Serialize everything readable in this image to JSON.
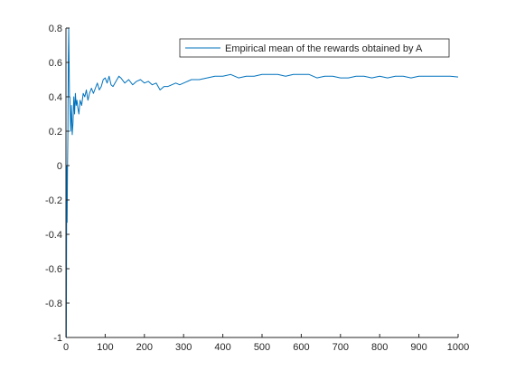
{
  "chart_data": {
    "type": "line",
    "title": "",
    "xlabel": "",
    "ylabel": "",
    "xlim": [
      0,
      1000
    ],
    "ylim": [
      -1,
      0.8
    ],
    "grid": false,
    "legend_position": "top-right",
    "x_ticks": [
      "0",
      "100",
      "200",
      "300",
      "400",
      "500",
      "600",
      "700",
      "800",
      "900",
      "1000"
    ],
    "y_ticks": [
      "-1",
      "-0.8",
      "-0.6",
      "-0.4",
      "-0.2",
      "0",
      "0.2",
      "0.4",
      "0.6",
      "0.8"
    ],
    "x_tick_values": [
      0,
      100,
      200,
      300,
      400,
      500,
      600,
      700,
      800,
      900,
      1000
    ],
    "y_tick_values": [
      -1,
      -0.8,
      -0.6,
      -0.4,
      -0.2,
      0,
      0.2,
      0.4,
      0.6,
      0.8
    ],
    "series": [
      {
        "name": "Empirical mean of the rewards obtained by A",
        "color": "#0072bd",
        "x": [
          1,
          2,
          3,
          4,
          5,
          6,
          7,
          8,
          9,
          10,
          12,
          14,
          16,
          18,
          20,
          22,
          24,
          26,
          28,
          30,
          33,
          36,
          40,
          44,
          48,
          52,
          56,
          60,
          65,
          70,
          75,
          80,
          85,
          90,
          95,
          100,
          105,
          110,
          115,
          120,
          125,
          130,
          135,
          140,
          150,
          160,
          170,
          180,
          190,
          200,
          210,
          220,
          230,
          240,
          250,
          260,
          270,
          280,
          290,
          300,
          320,
          340,
          360,
          380,
          400,
          420,
          440,
          460,
          480,
          500,
          520,
          540,
          560,
          580,
          600,
          620,
          640,
          660,
          680,
          700,
          720,
          740,
          760,
          780,
          800,
          820,
          840,
          860,
          880,
          900,
          920,
          940,
          960,
          980,
          1000
        ],
        "y": [
          -1,
          0.0,
          -0.33,
          0.0,
          0.2,
          0.6,
          0.8,
          0.6,
          0.4,
          0.4,
          0.2,
          0.35,
          0.18,
          0.25,
          0.4,
          0.3,
          0.42,
          0.35,
          0.38,
          0.34,
          0.3,
          0.38,
          0.35,
          0.42,
          0.4,
          0.44,
          0.38,
          0.42,
          0.45,
          0.42,
          0.45,
          0.48,
          0.44,
          0.46,
          0.5,
          0.51,
          0.48,
          0.52,
          0.47,
          0.46,
          0.48,
          0.5,
          0.52,
          0.51,
          0.48,
          0.5,
          0.47,
          0.49,
          0.5,
          0.48,
          0.49,
          0.47,
          0.48,
          0.44,
          0.46,
          0.46,
          0.47,
          0.48,
          0.47,
          0.48,
          0.5,
          0.5,
          0.51,
          0.52,
          0.52,
          0.53,
          0.51,
          0.52,
          0.52,
          0.53,
          0.53,
          0.53,
          0.52,
          0.53,
          0.53,
          0.53,
          0.51,
          0.52,
          0.52,
          0.51,
          0.51,
          0.52,
          0.52,
          0.51,
          0.52,
          0.51,
          0.52,
          0.52,
          0.51,
          0.52,
          0.52,
          0.52,
          0.52,
          0.52,
          0.515
        ]
      }
    ]
  }
}
